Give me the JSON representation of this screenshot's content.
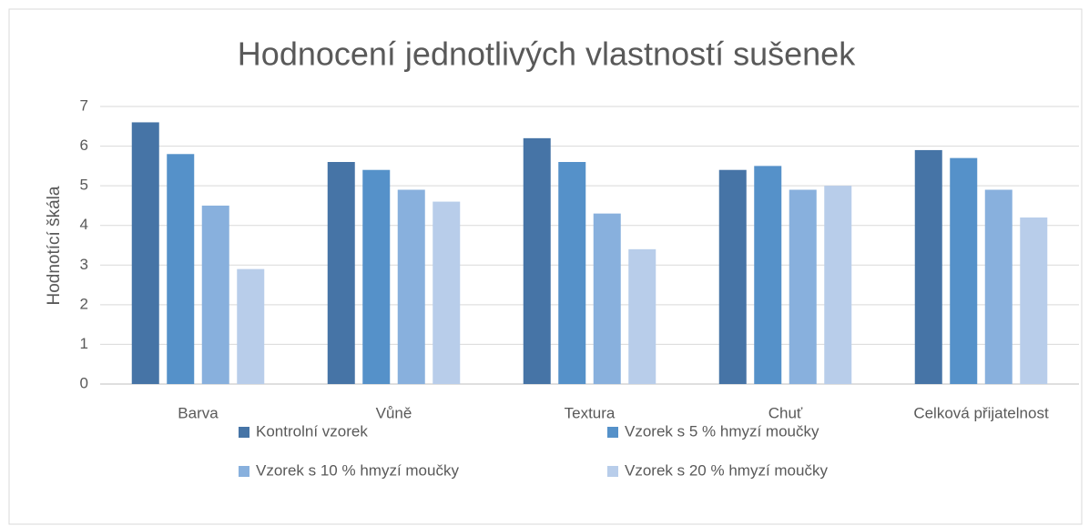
{
  "chart_data": {
    "type": "bar",
    "title": "Hodnocení jednotlivých vlastností sušenek",
    "y_label": "Hodnotící škála",
    "categories": [
      "Barva",
      "Vůně",
      "Textura",
      "Chuť",
      "Celková přijatelnost"
    ],
    "series": [
      {
        "name": "Kontrolní vzorek",
        "color": "#4674a6",
        "values": [
          6.6,
          5.6,
          6.2,
          5.4,
          5.9
        ]
      },
      {
        "name": "Vzorek s 5 % hmyzí moučky",
        "color": "#5591c9",
        "values": [
          5.8,
          5.4,
          5.6,
          5.5,
          5.7
        ]
      },
      {
        "name": "Vzorek s 10 % hmyzí moučky",
        "color": "#88b0dd",
        "values": [
          4.5,
          4.9,
          4.3,
          4.9,
          4.9
        ]
      },
      {
        "name": "Vzorek s 20 % hmyzí moučky",
        "color": "#b8cdea",
        "values": [
          2.9,
          4.6,
          3.4,
          5.0,
          4.2
        ]
      }
    ],
    "ylim": [
      0,
      7
    ],
    "yticks": [
      0,
      1,
      2,
      3,
      4,
      5,
      6,
      7
    ],
    "grid": true,
    "legend": "bottom"
  }
}
